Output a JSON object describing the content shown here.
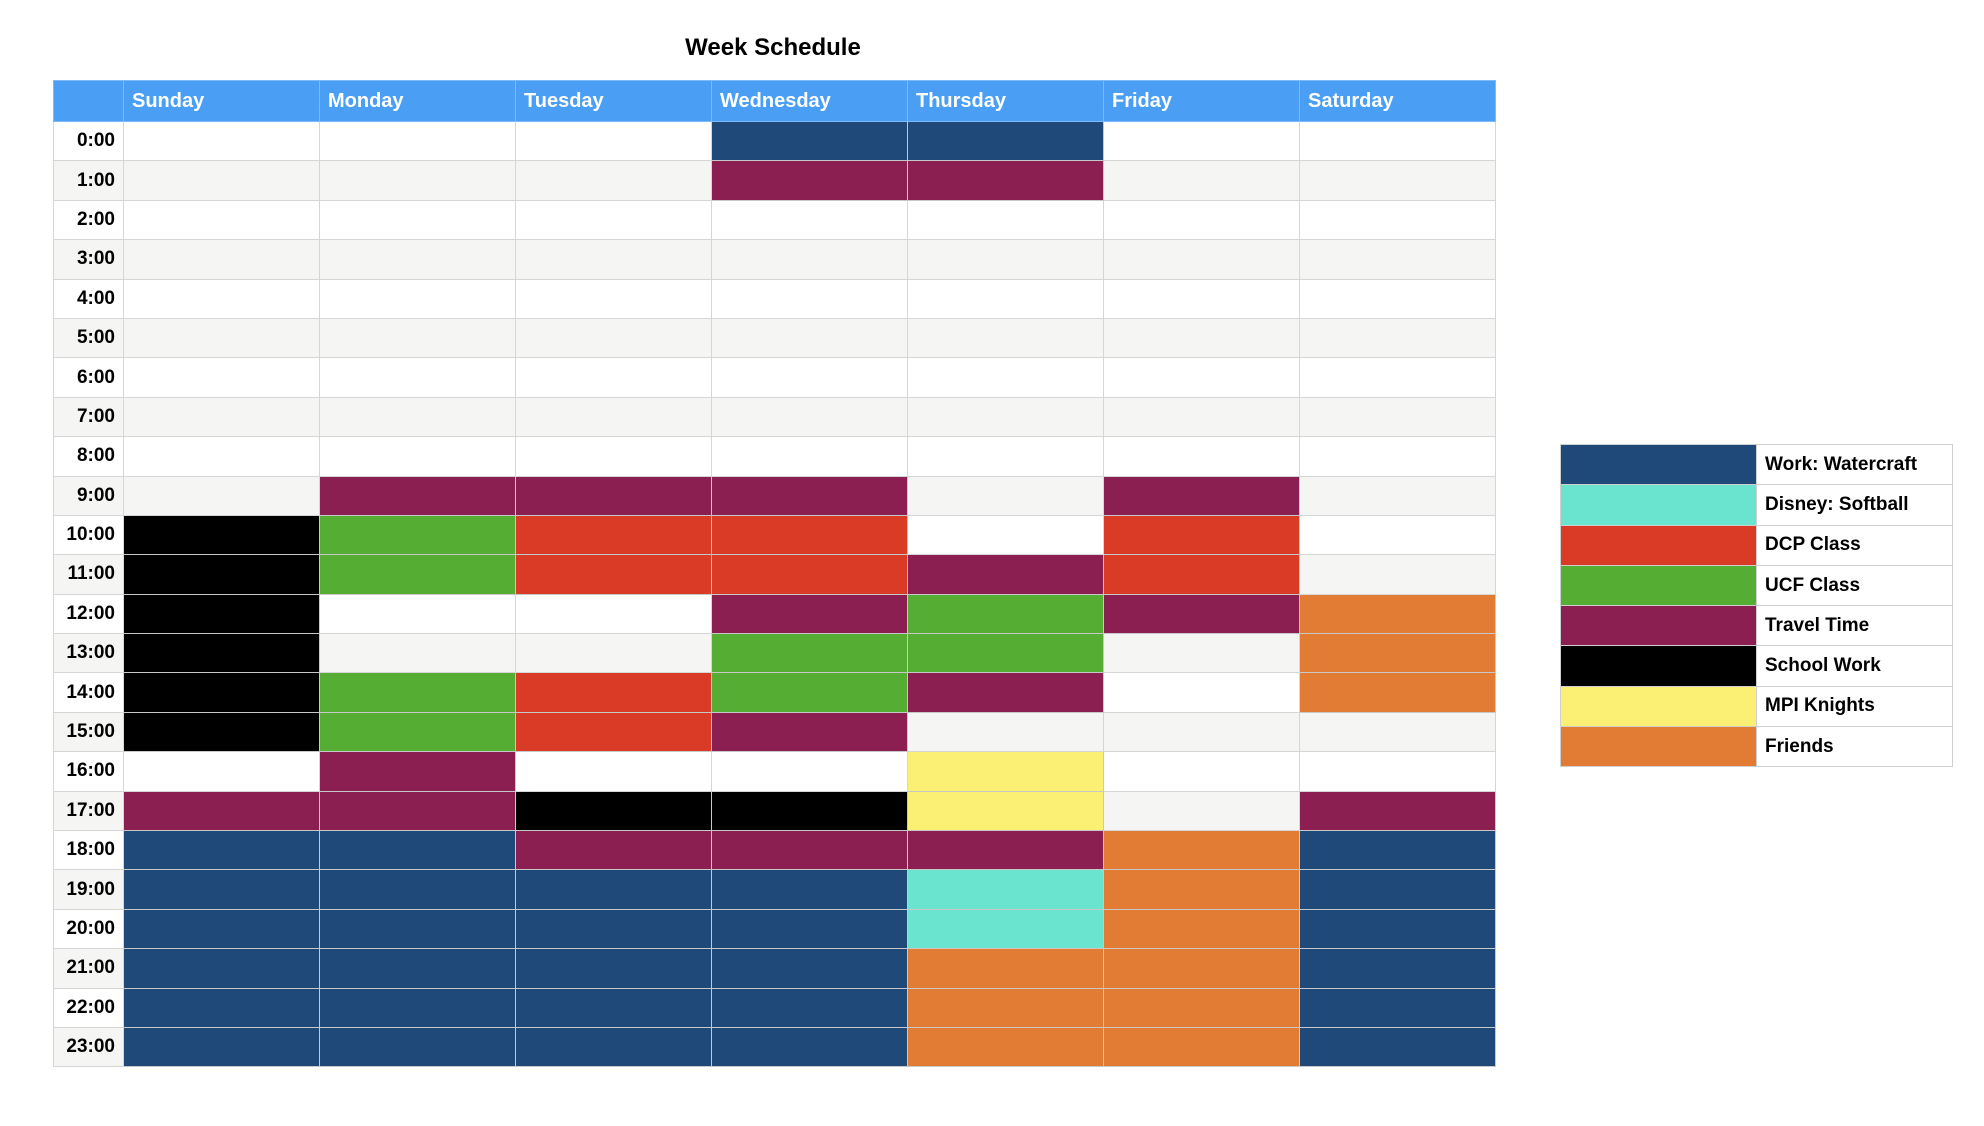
{
  "title": "Week Schedule",
  "days": [
    "Sunday",
    "Monday",
    "Tuesday",
    "Wednesday",
    "Thursday",
    "Friday",
    "Saturday"
  ],
  "hours": [
    "0:00",
    "1:00",
    "2:00",
    "3:00",
    "4:00",
    "5:00",
    "6:00",
    "7:00",
    "8:00",
    "9:00",
    "10:00",
    "11:00",
    "12:00",
    "13:00",
    "14:00",
    "15:00",
    "16:00",
    "17:00",
    "18:00",
    "19:00",
    "20:00",
    "21:00",
    "22:00",
    "23:00"
  ],
  "categories": [
    {
      "key": "W",
      "label": "Work: Watercraft",
      "color": "#1f4978"
    },
    {
      "key": "D",
      "label": "Disney: Softball",
      "color": "#6ae3cf"
    },
    {
      "key": "C",
      "label": "DCP Class",
      "color": "#d93b27"
    },
    {
      "key": "U",
      "label": "UCF Class",
      "color": "#55ad34"
    },
    {
      "key": "T",
      "label": "Travel Time",
      "color": "#8c1f52"
    },
    {
      "key": "S",
      "label": "School Work",
      "color": "#000000"
    },
    {
      "key": "M",
      "label": "MPI Knights",
      "color": "#fbf074"
    },
    {
      "key": "F",
      "label": "Friends",
      "color": "#e27b33"
    }
  ],
  "grid": [
    [
      "",
      "",
      "",
      "W",
      "W",
      "",
      ""
    ],
    [
      "",
      "",
      "",
      "T",
      "T",
      "",
      ""
    ],
    [
      "",
      "",
      "",
      "",
      "",
      "",
      ""
    ],
    [
      "",
      "",
      "",
      "",
      "",
      "",
      ""
    ],
    [
      "",
      "",
      "",
      "",
      "",
      "",
      ""
    ],
    [
      "",
      "",
      "",
      "",
      "",
      "",
      ""
    ],
    [
      "",
      "",
      "",
      "",
      "",
      "",
      ""
    ],
    [
      "",
      "",
      "",
      "",
      "",
      "",
      ""
    ],
    [
      "",
      "",
      "",
      "",
      "",
      "",
      ""
    ],
    [
      "",
      "T",
      "T",
      "T",
      "",
      "T",
      ""
    ],
    [
      "S",
      "U",
      "C",
      "C",
      "",
      "C",
      ""
    ],
    [
      "S",
      "U",
      "C",
      "C",
      "T",
      "C",
      ""
    ],
    [
      "S",
      "",
      "",
      "T",
      "U",
      "T",
      "F"
    ],
    [
      "S",
      "",
      "",
      "U",
      "U",
      "",
      "F"
    ],
    [
      "S",
      "U",
      "C",
      "U",
      "T",
      "",
      "F"
    ],
    [
      "S",
      "U",
      "C",
      "T",
      "",
      "",
      ""
    ],
    [
      "",
      "T",
      "",
      "",
      "M",
      "",
      ""
    ],
    [
      "T",
      "T",
      "S",
      "S",
      "M",
      "",
      "T"
    ],
    [
      "W",
      "W",
      "T",
      "T",
      "T",
      "F",
      "W"
    ],
    [
      "W",
      "W",
      "W",
      "W",
      "D",
      "F",
      "W"
    ],
    [
      "W",
      "W",
      "W",
      "W",
      "D",
      "F",
      "W"
    ],
    [
      "W",
      "W",
      "W",
      "W",
      "F",
      "F",
      "W"
    ],
    [
      "W",
      "W",
      "W",
      "W",
      "F",
      "F",
      "W"
    ],
    [
      "W",
      "W",
      "W",
      "W",
      "F",
      "F",
      "W"
    ]
  ]
}
